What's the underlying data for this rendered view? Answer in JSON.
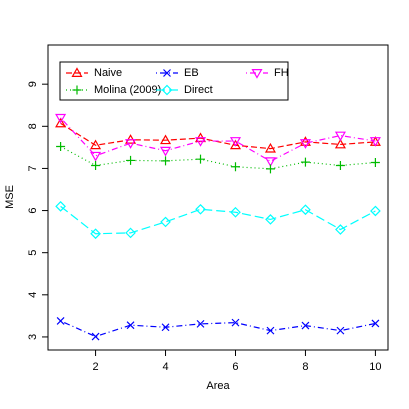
{
  "chart_data": {
    "type": "line",
    "x_label": "Area",
    "y_label": "MSE",
    "x": [
      1,
      2,
      3,
      4,
      5,
      6,
      7,
      8,
      9,
      10
    ],
    "xlim": [
      0.64,
      10.36
    ],
    "xticks": [
      2,
      4,
      6,
      8,
      10
    ],
    "ylim": [
      2.69,
      9.93
    ],
    "yticks": [
      3,
      4,
      5,
      6,
      7,
      8,
      9
    ],
    "series": [
      {
        "name": "Naive",
        "color": "#ff0000",
        "marker": "triangle-up",
        "dash": "6,3",
        "values": [
          8.07,
          7.55,
          7.68,
          7.67,
          7.72,
          7.55,
          7.47,
          7.63,
          7.57,
          7.63
        ]
      },
      {
        "name": "EB",
        "color": "#0000ff",
        "marker": "cross",
        "dash": "1,3,6,3",
        "values": [
          3.38,
          3.01,
          3.28,
          3.23,
          3.31,
          3.34,
          3.15,
          3.27,
          3.15,
          3.32
        ]
      },
      {
        "name": "FH",
        "color": "#ff00ff",
        "marker": "triangle-down",
        "dash": "1,3,6,3",
        "values": [
          8.2,
          7.3,
          7.6,
          7.42,
          7.65,
          7.65,
          7.17,
          7.6,
          7.78,
          7.65
        ]
      },
      {
        "name": "Molina (2009)",
        "color": "#00bb00",
        "marker": "plus",
        "dash": "1,3",
        "values": [
          7.52,
          7.07,
          7.19,
          7.18,
          7.22,
          7.04,
          6.99,
          7.15,
          7.07,
          7.14
        ]
      },
      {
        "name": "Direct",
        "color": "#00ffff",
        "marker": "diamond",
        "dash": "9,4",
        "values": [
          6.1,
          5.45,
          5.47,
          5.73,
          6.03,
          5.96,
          5.79,
          6.02,
          5.55,
          5.99
        ]
      }
    ]
  }
}
